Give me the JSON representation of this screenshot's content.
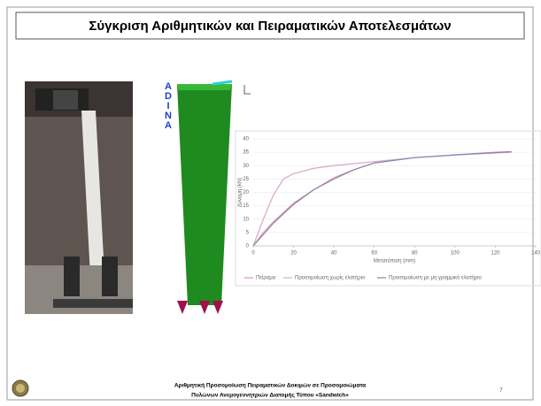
{
  "slide": {
    "title": "Σύγκριση Αριθμητικών και Πειραματικών Αποτελεσμάτων",
    "model_label": "ADINA",
    "footer": [
      "Αριθμητική Προσομοίωση Πειραματικών Δοκιμών σε Προσομοιώματα",
      "Πυλώνων Ανεμογεννητριών Διατομής Τύπου «Sandwich»"
    ],
    "page_number": "7"
  },
  "chart_data": {
    "type": "line",
    "x_label": "Μετατόπιση (mm)",
    "y_label": "Δύναμη (kN)",
    "xlim": [
      0,
      140
    ],
    "xticks": [
      0,
      20,
      40,
      60,
      80,
      100,
      120,
      140
    ],
    "ylim": [
      0,
      40
    ],
    "yticks": [
      0,
      5,
      10,
      15,
      20,
      25,
      30,
      35,
      40
    ],
    "grid": true,
    "legend": "bottom",
    "series": [
      {
        "name": "Πείραμα",
        "color": "#e39a9a",
        "x": [
          0,
          5,
          10,
          20,
          30,
          40,
          50,
          60,
          80,
          100,
          120,
          128
        ],
        "values": [
          0,
          5,
          9,
          16,
          21,
          25.5,
          28.5,
          31,
          33,
          34,
          35,
          35.2
        ]
      },
      {
        "name": "Προσομοίωση χωρίς ελατήριο",
        "color": "#d9a6cc",
        "x": [
          0,
          5,
          10,
          15,
          20,
          30,
          40,
          60,
          80,
          100,
          128
        ],
        "values": [
          0,
          10,
          19,
          25,
          27,
          29,
          30,
          31.5,
          33,
          34,
          35
        ]
      },
      {
        "name": "Προσομοίωση με μη γραμμικό ελατήριο",
        "color": "#8a84b4",
        "x": [
          0,
          10,
          20,
          30,
          40,
          50,
          60,
          80,
          100,
          128
        ],
        "values": [
          0,
          8.5,
          15.5,
          21,
          25,
          28.5,
          31,
          33,
          34,
          35.2
        ]
      }
    ]
  }
}
